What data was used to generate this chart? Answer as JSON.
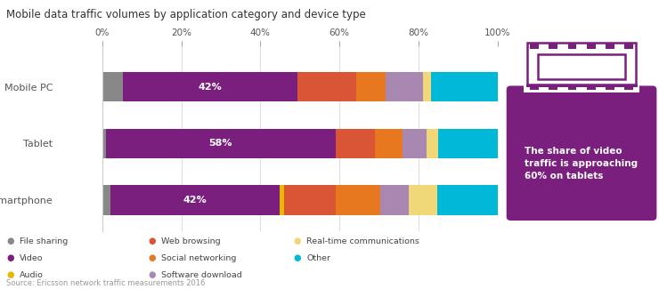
{
  "title": "Mobile data traffic volumes by application category and device type",
  "source": "Source: Ericsson network traffic measurements 2016",
  "categories": [
    "Mobile PC",
    "Tablet",
    "Smartphone"
  ],
  "segments": {
    "File sharing": [
      5,
      1,
      2
    ],
    "Video": [
      42,
      58,
      42
    ],
    "Audio": [
      0,
      0,
      1
    ],
    "Web browsing": [
      14,
      10,
      13
    ],
    "Social networking": [
      7,
      7,
      11
    ],
    "Software download": [
      9,
      6,
      7
    ],
    "Real-time communications": [
      2,
      3,
      7
    ],
    "Other": [
      16,
      15,
      15
    ]
  },
  "colors": {
    "File sharing": "#888888",
    "Video": "#7b1f7e",
    "Audio": "#e8b800",
    "Web browsing": "#d95535",
    "Social networking": "#e87820",
    "Software download": "#a888b0",
    "Real-time communications": "#f0d878",
    "Other": "#00b8d8"
  },
  "video_labels": {
    "Mobile PC": "42%",
    "Tablet": "58%",
    "Smartphone": "42%"
  },
  "annotation_text": "The share of video\ntraffic is approaching\n60% on tablets",
  "annotation_bg": "#7b1f7e",
  "annotation_text_color": "#ffffff",
  "bar_height": 0.52,
  "background_color": "#ffffff",
  "label_color": "#555555",
  "title_color": "#333333"
}
